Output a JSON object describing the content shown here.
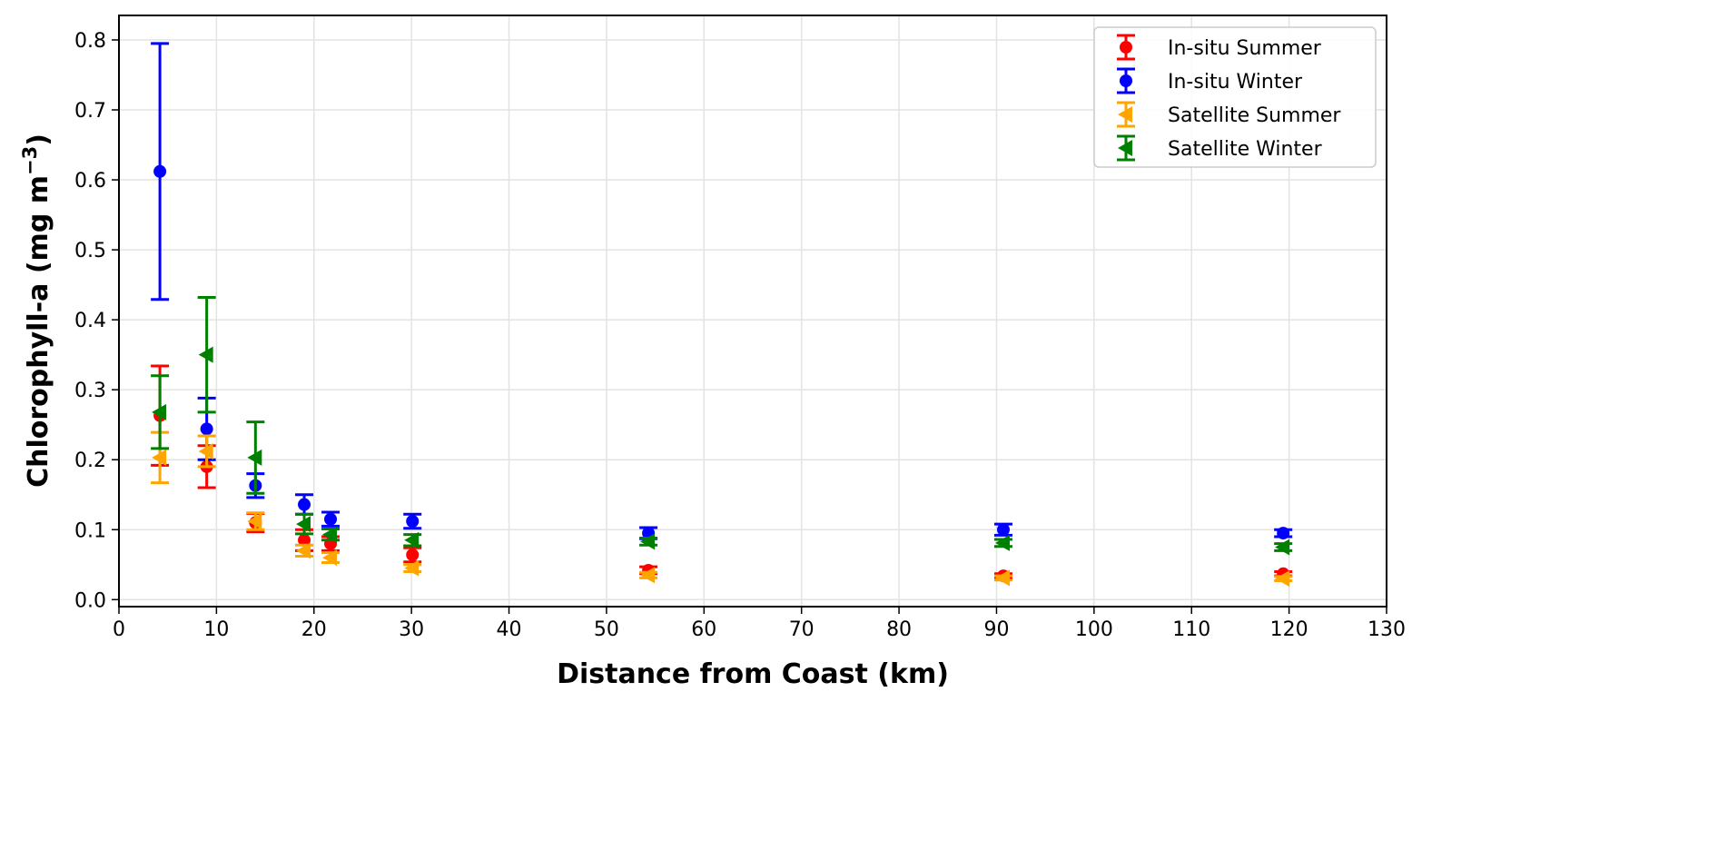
{
  "chart_data": {
    "type": "scatter",
    "title": "",
    "xlabel": "Distance from Coast (km)",
    "ylabel_main": "Chlorophyll-a (mg m",
    "ylabel_sup": "−3",
    "ylabel_close": ")",
    "xlim": [
      0,
      130
    ],
    "ylim": [
      -0.01,
      0.835
    ],
    "xticks": [
      0,
      10,
      20,
      30,
      40,
      50,
      60,
      70,
      80,
      90,
      100,
      110,
      120,
      130
    ],
    "xtick_labels": [
      "0",
      "10",
      "20",
      "30",
      "40",
      "50",
      "60",
      "70",
      "80",
      "90",
      "100",
      "110",
      "120",
      "130"
    ],
    "yticks": [
      0.0,
      0.1,
      0.2,
      0.3,
      0.4,
      0.5,
      0.6,
      0.7,
      0.8
    ],
    "ytick_labels": [
      "0.0",
      "0.1",
      "0.2",
      "0.3",
      "0.4",
      "0.5",
      "0.6",
      "0.7",
      "0.8"
    ],
    "grid": true,
    "legend_position": "top-right",
    "x": [
      4.2,
      9.0,
      14.0,
      19.0,
      21.7,
      30.1,
      54.3,
      90.7,
      119.4
    ],
    "series": [
      {
        "name": "In-situ Summer",
        "color": "#ff0000",
        "marker": "circle",
        "values": [
          0.263,
          0.19,
          0.11,
          0.085,
          0.08,
          0.064,
          0.042,
          0.034,
          0.037
        ],
        "err": [
          0.071,
          0.03,
          0.013,
          0.015,
          0.01,
          0.01,
          0.005,
          0.003,
          0.003
        ]
      },
      {
        "name": "In-situ Winter",
        "color": "#0000ff",
        "marker": "circle",
        "values": [
          0.612,
          0.244,
          0.163,
          0.136,
          0.115,
          0.112,
          0.095,
          0.1,
          0.095
        ],
        "err": [
          0.183,
          0.044,
          0.017,
          0.014,
          0.01,
          0.01,
          0.008,
          0.008,
          0.005
        ]
      },
      {
        "name": "Satellite Summer",
        "color": "#ffa500",
        "marker": "triangle-left",
        "values": [
          0.203,
          0.212,
          0.112,
          0.07,
          0.06,
          0.045,
          0.035,
          0.031,
          0.03
        ],
        "err": [
          0.036,
          0.022,
          0.012,
          0.008,
          0.007,
          0.005,
          0.004,
          0.003,
          0.003
        ]
      },
      {
        "name": "Satellite Winter",
        "color": "#008000",
        "marker": "triangle-left",
        "values": [
          0.268,
          0.35,
          0.203,
          0.108,
          0.093,
          0.085,
          0.083,
          0.081,
          0.075
        ],
        "err": [
          0.052,
          0.082,
          0.051,
          0.014,
          0.008,
          0.008,
          0.005,
          0.005,
          0.005
        ]
      }
    ]
  }
}
